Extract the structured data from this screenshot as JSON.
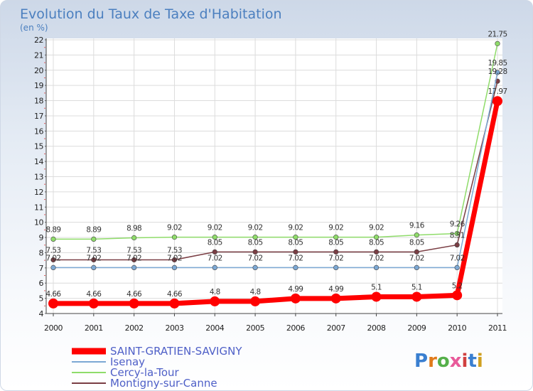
{
  "chart_data": {
    "type": "line",
    "title": "Evolution du Taux de Taxe d'Habitation",
    "subtitle": "(en %)",
    "categories": [
      "2000",
      "2001",
      "2002",
      "2003",
      "2004",
      "2005",
      "2006",
      "2007",
      "2008",
      "2009",
      "2010",
      "2011"
    ],
    "ylim": [
      4,
      22
    ],
    "yticks": [
      4,
      5,
      6,
      7,
      8,
      9,
      10,
      11,
      12,
      13,
      14,
      15,
      16,
      17,
      18,
      19,
      20,
      21,
      22
    ],
    "grid": true,
    "series": [
      {
        "name": "Cercy-la-Tour",
        "color": "#8fdc6a",
        "values": [
          8.89,
          8.89,
          8.98,
          9.02,
          9.02,
          9.02,
          9.02,
          9.02,
          9.02,
          9.16,
          9.26,
          21.75
        ],
        "labels": [
          "8.89",
          "8.89",
          "8.98",
          "9.02",
          "9.02",
          "9.02",
          "9.02",
          "9.02",
          "9.02",
          "9.16",
          "9.26",
          "21.75"
        ]
      },
      {
        "name": "Montigny-sur-Canne",
        "color": "#7a3e44",
        "values": [
          7.53,
          7.53,
          7.53,
          7.53,
          8.05,
          8.05,
          8.05,
          8.05,
          8.05,
          8.05,
          8.51,
          19.28
        ],
        "labels": [
          "7.53",
          "7.53",
          "7.53",
          "7.53",
          "8.05",
          "8.05",
          "8.05",
          "8.05",
          "8.05",
          "8.05",
          "8.51",
          "19.28"
        ]
      },
      {
        "name": "Isenay",
        "color": "#7ca8d4",
        "values": [
          7.02,
          7.02,
          7.02,
          7.02,
          7.02,
          7.02,
          7.02,
          7.02,
          7.02,
          7.02,
          7.02,
          19.85
        ],
        "labels": [
          "7.02",
          "7.02",
          "7.02",
          "7.02",
          "7.02",
          "7.02",
          "7.02",
          "7.02",
          "7.02",
          "7.02",
          "7.02",
          "19.85"
        ]
      },
      {
        "name": "SAINT-GRATIEN-SAVIGNY",
        "color": "#ff0000",
        "values": [
          4.66,
          4.66,
          4.66,
          4.66,
          4.8,
          4.8,
          4.99,
          4.99,
          5.1,
          5.1,
          5.2,
          17.97
        ],
        "labels": [
          "4.66",
          "4.66",
          "4.66",
          "4.66",
          "4.8",
          "4.8",
          "4.99",
          "4.99",
          "5.1",
          "5.1",
          "5.2",
          "17.97"
        ]
      }
    ],
    "legend": [
      {
        "name": "SAINT-GRATIEN-SAVIGNY",
        "color": "#ff0000"
      },
      {
        "name": "Isenay",
        "color": "#7ca8d4"
      },
      {
        "name": "Cercy-la-Tour",
        "color": "#8fdc6a"
      },
      {
        "name": "Montigny-sur-Canne",
        "color": "#7a3e44"
      }
    ]
  },
  "watermark": {
    "text": "Proxiti"
  }
}
